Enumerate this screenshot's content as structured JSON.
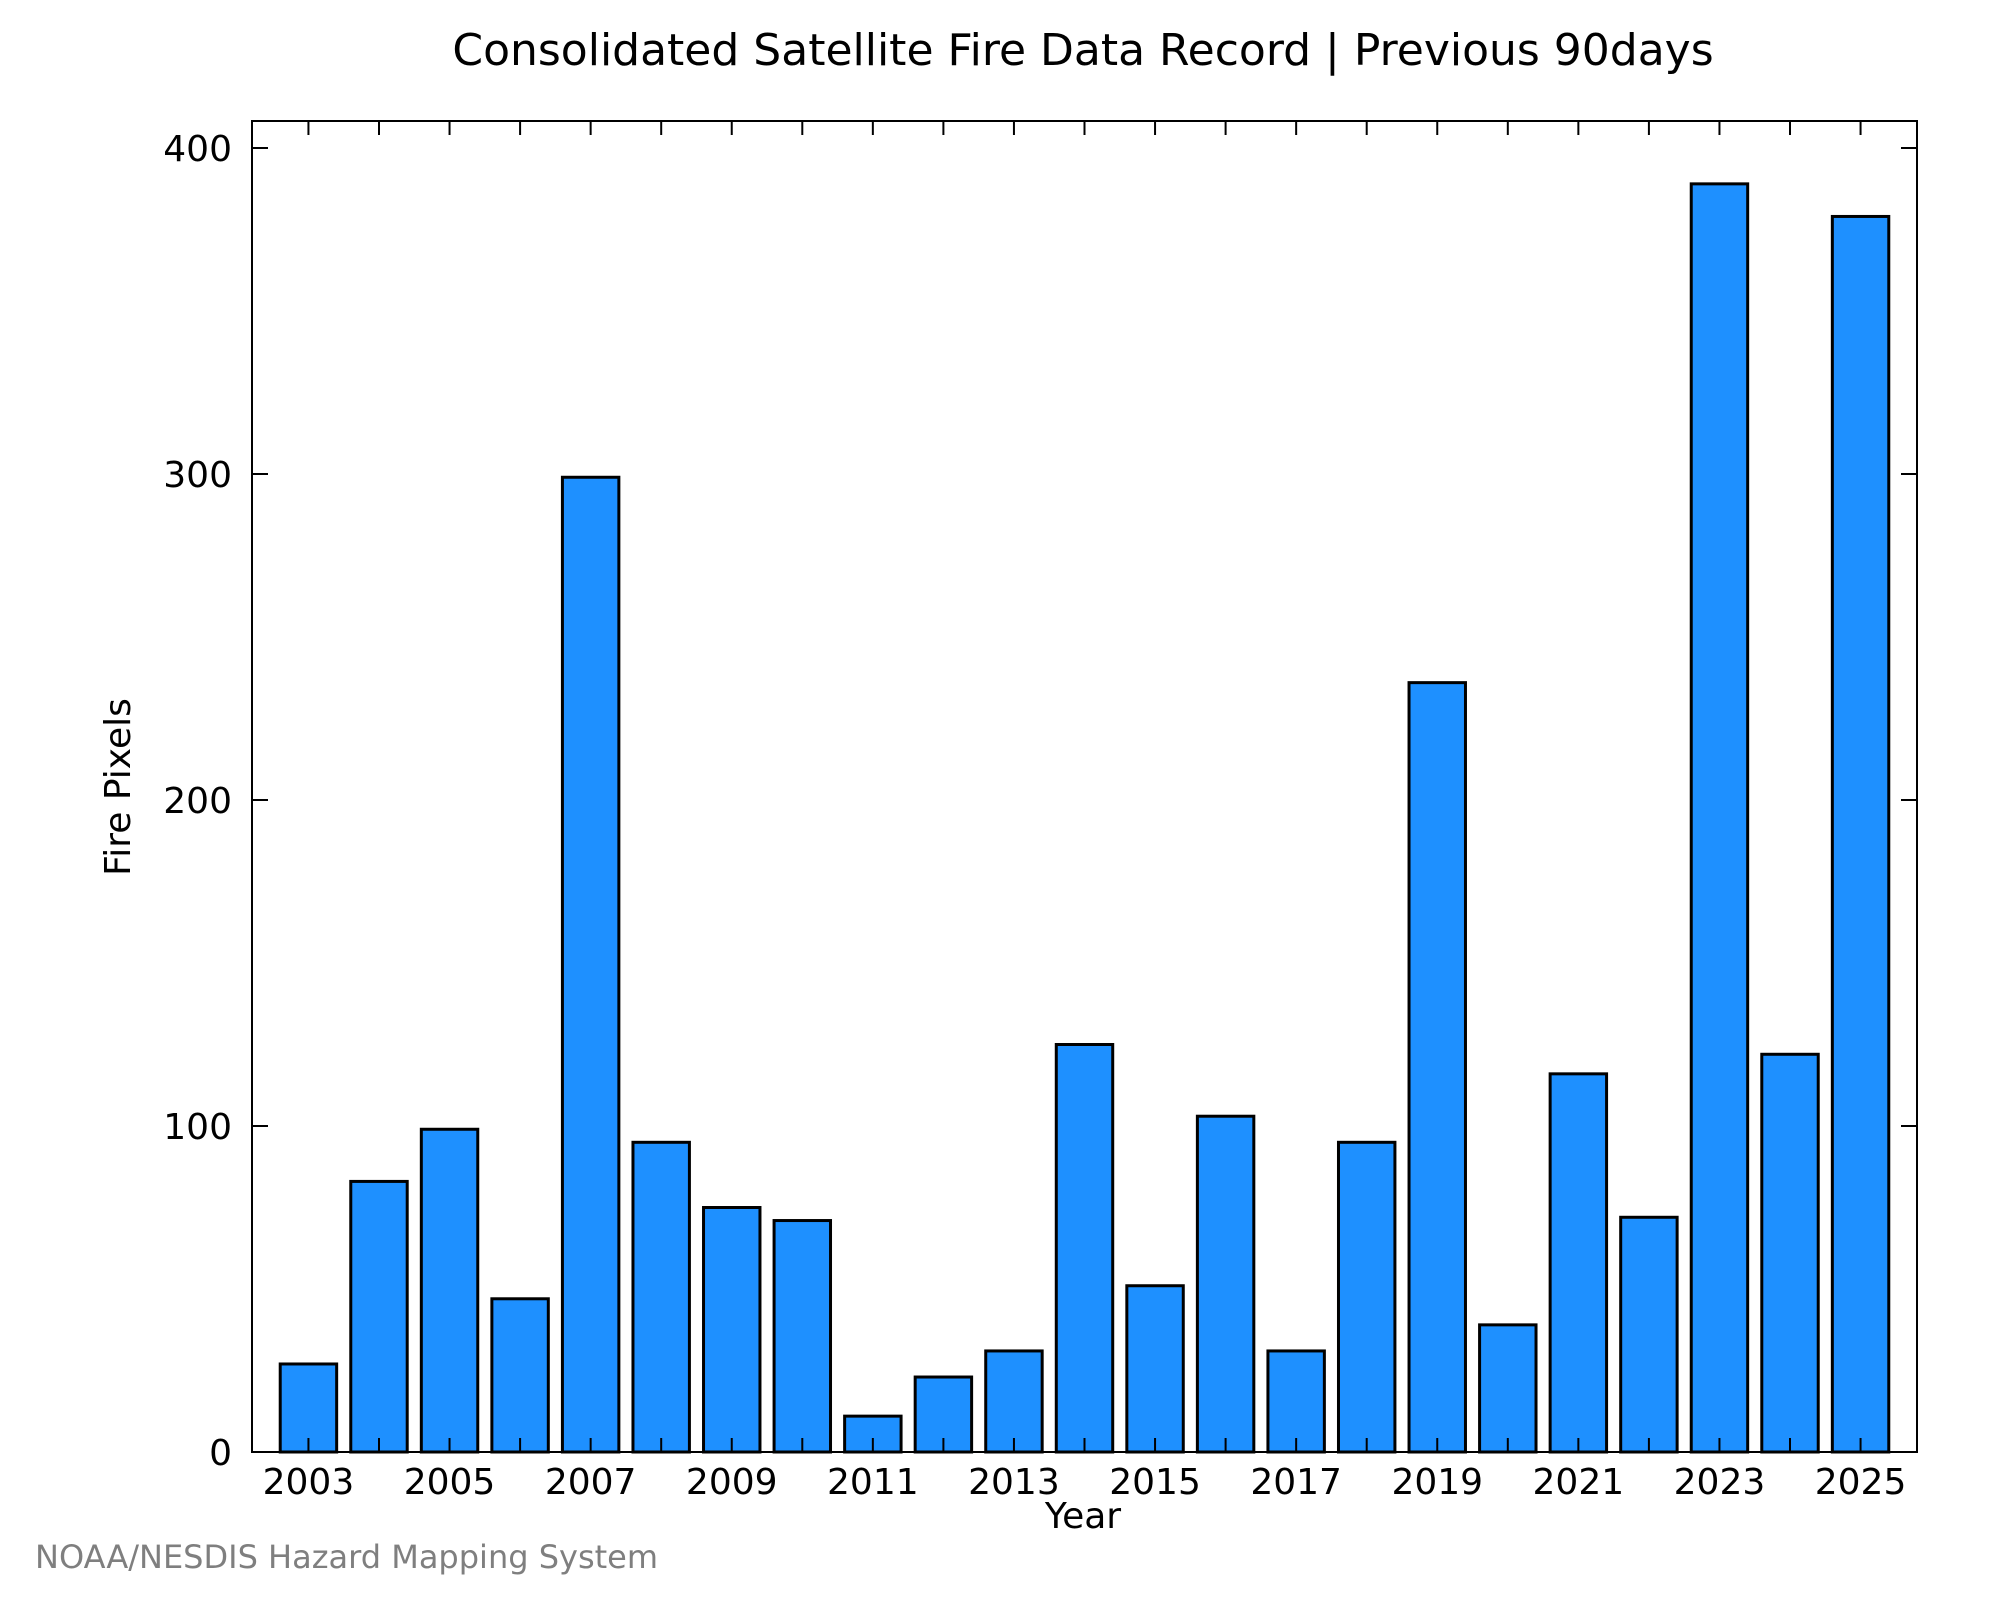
{
  "chart_data": {
    "type": "bar",
    "title": "Consolidated Satellite Fire Data Record | Previous 90days",
    "xlabel": "Year",
    "ylabel": "Fire Pixels",
    "categories": [
      2003,
      2004,
      2005,
      2006,
      2007,
      2008,
      2009,
      2010,
      2011,
      2012,
      2013,
      2014,
      2015,
      2016,
      2017,
      2018,
      2019,
      2020,
      2021,
      2022,
      2023,
      2024,
      2025
    ],
    "values": [
      27,
      83,
      99,
      47,
      299,
      95,
      75,
      71,
      11,
      23,
      31,
      125,
      51,
      103,
      31,
      95,
      236,
      39,
      116,
      72,
      389,
      122,
      379
    ],
    "ylim": [
      0,
      400
    ],
    "yticks": [
      0,
      100,
      200,
      300,
      400
    ],
    "xticks": [
      2003,
      2005,
      2007,
      2009,
      2011,
      2013,
      2015,
      2017,
      2019,
      2021,
      2023,
      2025
    ],
    "xlim": [
      2002.2,
      2025.8
    ],
    "grid": false,
    "bar_color": "#1e90ff"
  },
  "footer": {
    "credit": "NOAA/NESDIS Hazard Mapping System"
  }
}
